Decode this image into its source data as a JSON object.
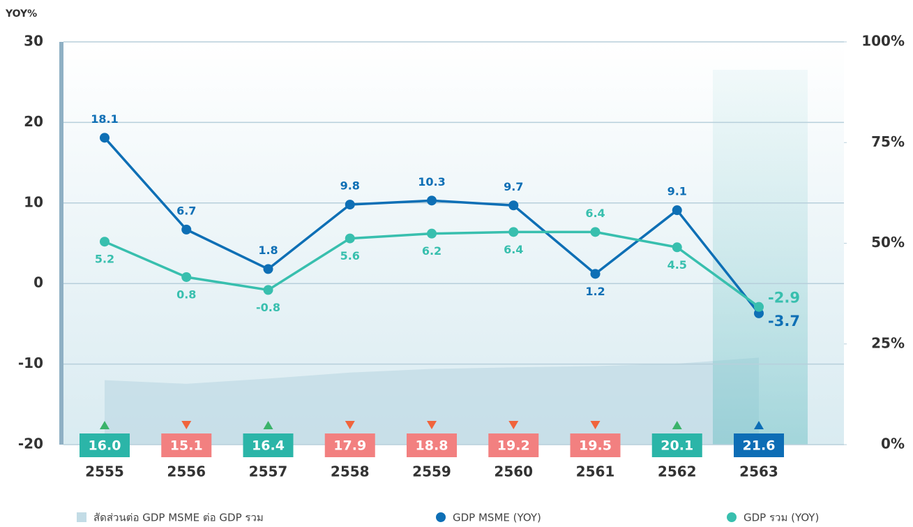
{
  "chart_data": {
    "type": "line",
    "y_label": "YOY%",
    "categories": [
      "2555",
      "2556",
      "2557",
      "2558",
      "2559",
      "2560",
      "2561",
      "2562",
      "2563"
    ],
    "ylim": [
      -20,
      30
    ],
    "yticks": [
      -20,
      -10,
      0,
      10,
      20,
      30
    ],
    "y2lim": [
      0,
      100
    ],
    "y2ticks": [
      {
        "value": 0,
        "label": "0%"
      },
      {
        "value": 25,
        "label": "25%"
      },
      {
        "value": 50,
        "label": "50%"
      },
      {
        "value": 75,
        "label": "75%"
      },
      {
        "value": 100,
        "label": "100%"
      }
    ],
    "grid": true,
    "series": [
      {
        "name": "สัดส่วนต่อ GDP MSME ต่อ GDP รวม",
        "type": "area",
        "axis": "y2",
        "color": "#c3dce6",
        "values": [
          16.0,
          15.1,
          16.4,
          17.9,
          18.8,
          19.2,
          19.5,
          20.1,
          21.6
        ],
        "value_labels": [
          "16.0",
          "15.1",
          "16.4",
          "17.9",
          "18.8",
          "19.2",
          "19.5",
          "20.1",
          "21.6"
        ],
        "point_colors": [
          "#2bb5a8",
          "#f28080",
          "#2bb5a8",
          "#f28080",
          "#f28080",
          "#f28080",
          "#f28080",
          "#2bb5a8",
          "#0d6db5"
        ],
        "directions": [
          "up",
          "down",
          "up",
          "down",
          "down",
          "down",
          "down",
          "up",
          "up"
        ]
      },
      {
        "name": "GDP MSME (YOY)",
        "type": "line",
        "color": "#0e6fb5",
        "values": [
          18.1,
          6.7,
          1.8,
          9.8,
          10.3,
          9.7,
          1.2,
          9.1,
          -3.7
        ]
      },
      {
        "name": "GDP รวม (YOY)",
        "type": "line",
        "color": "#38bfae",
        "values": [
          5.2,
          0.8,
          -0.8,
          5.6,
          6.2,
          6.4,
          6.4,
          4.5,
          -2.9
        ]
      }
    ]
  }
}
